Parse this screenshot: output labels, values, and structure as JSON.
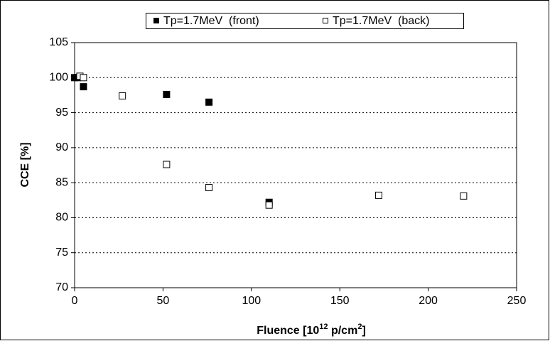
{
  "chart_data": {
    "type": "scatter",
    "xlabel": [
      "Fluence  [10",
      "12",
      " p/cm",
      "2",
      "]"
    ],
    "ylabel": "CCE  [%]",
    "xlim": [
      0,
      250
    ],
    "xticks": [
      0,
      50,
      100,
      150,
      200,
      250
    ],
    "ylim": [
      70,
      105
    ],
    "yticks": [
      70,
      75,
      80,
      85,
      90,
      95,
      100,
      105
    ],
    "grid": true,
    "legend": "top",
    "series": [
      {
        "name": "Tp=1.7MeV  (front)",
        "color": "#000000",
        "marker": "filled-square",
        "x": [
          0,
          1.5,
          5,
          52,
          76,
          110
        ],
        "values": [
          100,
          100,
          98.7,
          97.6,
          96.5,
          82.2
        ]
      },
      {
        "name": "Tp=1.7MeV  (back)",
        "color": "#000000",
        "marker": "open-square",
        "x": [
          3,
          5,
          27,
          52,
          76,
          110,
          172,
          220
        ],
        "values": [
          100.2,
          100,
          97.4,
          87.6,
          84.3,
          81.8,
          83.2,
          83.1
        ]
      }
    ]
  }
}
